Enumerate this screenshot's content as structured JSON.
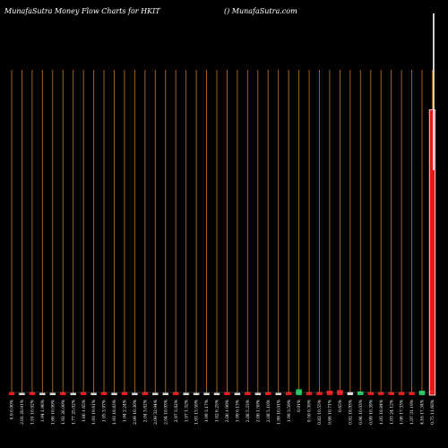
{
  "chart_data": {
    "type": "bar",
    "title": "MunafaSutra  Money Flow  Charts for HKIT",
    "watermark": "() MunafaSutra.com",
    "background_color": "#000000",
    "grid_color": "#b36a1a",
    "up_color": "#22c55e",
    "down_color": "#e81818",
    "neutral_color": "#d9d9d9",
    "price_line_color": "#ffffff",
    "categories": [
      "0.9 0.00%",
      "2.01 20.91%",
      "1.91 10.92%",
      "1.94 1.96%",
      "1.66 10.00%",
      "1.92 26.09%",
      "1.77 25.02%",
      "1.66 1.85%",
      "1.93 19.61%",
      "1.95 3.97%",
      "1.93 18.83%",
      "1.94 2.24%",
      "2.09 10.30%",
      "2.04 3.82%",
      "2.09 32.94%",
      "2.04 10.93%",
      "2.97 3.82%",
      "1.97 1.32%",
      "1.93 13.50%",
      "1.99 3.17%",
      "1.92 6.25%",
      "2.06 1.90%",
      "1.99 0.13%",
      "2.08 5.33%",
      "2.06 1.50%",
      "2.08 5.10%",
      "1.99 10.01%",
      "1.99 3.59%",
      "0.91%",
      "0.50 0.30%",
      "0.83 10.55%",
      "0.66 10.71%",
      "0.65%",
      "0.92 18.93%",
      "0.96 10.03%",
      "0.99 10.39%",
      "1.05 18.84%",
      "1.03 24.12%",
      "1.06 17.33%",
      "1.07 31.19%",
      "4.16 17.34%",
      "0.75 11.60%"
    ],
    "values": [
      2,
      1.5,
      2,
      1.5,
      1.5,
      2,
      1.5,
      2,
      1.5,
      2,
      1.5,
      2,
      1.5,
      2,
      1.5,
      1.5,
      2,
      1.5,
      1.5,
      1.5,
      1.5,
      2,
      1.5,
      2,
      1.5,
      2,
      1.5,
      2,
      4,
      2,
      2,
      3,
      3.5,
      2,
      2.5,
      2,
      2,
      2,
      2,
      2,
      3,
      193
    ],
    "direction": [
      "down",
      "neutral",
      "down",
      "neutral",
      "neutral",
      "down",
      "neutral",
      "down",
      "neutral",
      "down",
      "neutral",
      "down",
      "neutral",
      "down",
      "neutral",
      "neutral",
      "down",
      "neutral",
      "neutral",
      "neutral",
      "neutral",
      "down",
      "neutral",
      "down",
      "neutral",
      "down",
      "neutral",
      "down",
      "up",
      "down",
      "down",
      "down",
      "down",
      "neutral",
      "up",
      "down",
      "down",
      "down",
      "down",
      "down",
      "up",
      "down"
    ],
    "price_line": [
      [
        0,
        438
      ],
      [
        40,
        438
      ],
      [
        41,
        440
      ],
      [
        41,
        15
      ],
      [
        41,
        190
      ]
    ],
    "ylim": [
      0,
      220
    ],
    "grid": true,
    "legend": "none"
  }
}
